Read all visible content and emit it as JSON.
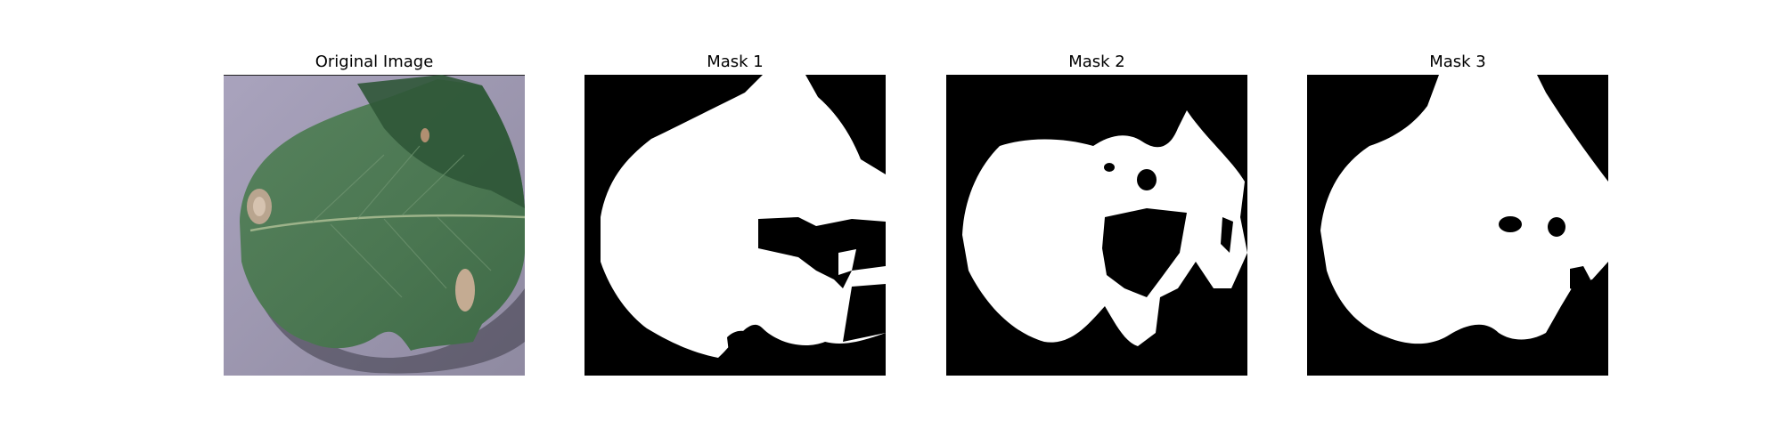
{
  "figure": {
    "panels": [
      {
        "title": "Original Image"
      },
      {
        "title": "Mask 1"
      },
      {
        "title": "Mask 2"
      },
      {
        "title": "Mask 3"
      }
    ]
  },
  "colors": {
    "background": "#b5afc4",
    "leaf": "#4d7a55",
    "leaf_dark": "#2e5234",
    "mask_fg": "#ffffff",
    "mask_bg": "#000000"
  }
}
